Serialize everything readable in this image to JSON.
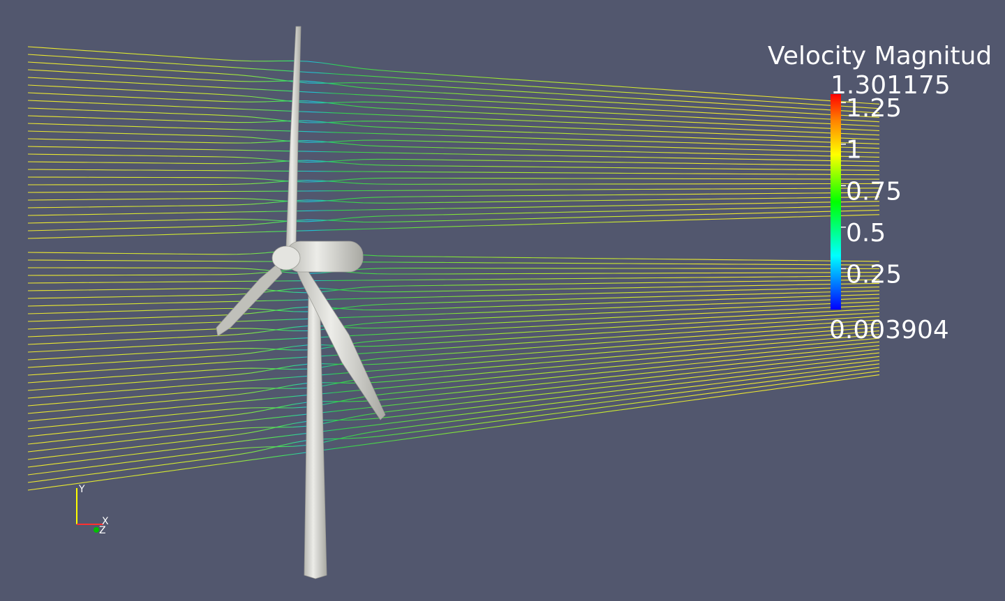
{
  "colorbar": {
    "title": "Velocity Magnitud",
    "min": 0.003904,
    "max": 1.301175,
    "ticks": [
      1.25,
      1,
      0.75,
      0.5,
      0.25
    ]
  },
  "axes_triad": {
    "x": "X",
    "y": "Y",
    "z": "Z"
  }
}
